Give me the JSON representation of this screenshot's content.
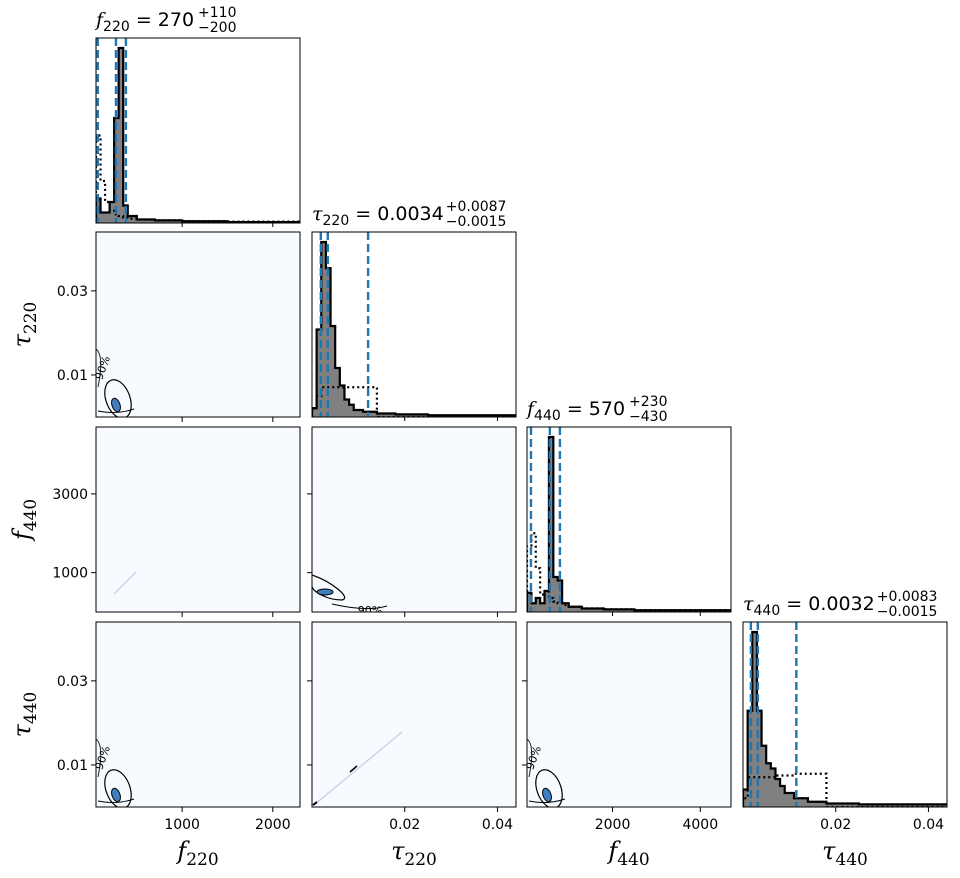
{
  "chart_data": {
    "type": "corner",
    "parameters": [
      {
        "key": "f220",
        "sym": "f",
        "sub": "220",
        "xlim": [
          50,
          2300
        ],
        "ticks": [
          1000,
          2000
        ],
        "tick_labels": [
          "1000",
          "2000"
        ],
        "title": {
          "eq": "= 270",
          "sup": "+110",
          "sub": "−200"
        },
        "quantiles": [
          70,
          270,
          380
        ],
        "hist_x": [
          50,
          100,
          150,
          200,
          250,
          300,
          350,
          400,
          500,
          700,
          1000,
          1500,
          2300
        ],
        "hist_y": [
          0.14,
          0.06,
          0.06,
          0.12,
          0.6,
          1.0,
          0.1,
          0.04,
          0.02,
          0.015,
          0.01,
          0.005
        ],
        "prior_y": [
          0.5,
          0.24,
          0.12,
          0.07,
          0.05,
          0.04,
          0.03,
          0.025,
          0.02,
          0.015,
          0.01,
          0.008
        ]
      },
      {
        "key": "t220",
        "sym": "τ",
        "sub": "220",
        "xlim": [
          0.0,
          0.044
        ],
        "ticks": [
          0.02,
          0.04
        ],
        "tick_labels": [
          "0.02",
          "0.04"
        ],
        "title": {
          "eq": "= 0.0034",
          "sup": "+0.0087",
          "sub": "−0.0015"
        },
        "quantiles": [
          0.0019,
          0.0034,
          0.0121
        ],
        "hist_x": [
          0.0,
          0.001,
          0.002,
          0.003,
          0.004,
          0.005,
          0.006,
          0.007,
          0.008,
          0.009,
          0.011,
          0.014,
          0.018,
          0.025,
          0.044
        ],
        "hist_y": [
          0.05,
          0.5,
          1.0,
          0.85,
          0.52,
          0.28,
          0.18,
          0.1,
          0.07,
          0.04,
          0.03,
          0.02,
          0.015,
          0.01
        ],
        "prior_y": [
          0.05,
          0.12,
          0.17,
          0.17,
          0.17,
          0.17,
          0.17,
          0.17,
          0.17,
          0.17,
          0.17,
          0.0,
          0.0,
          0.0
        ]
      },
      {
        "key": "f440",
        "sym": "f",
        "sub": "440",
        "xlim": [
          50,
          4700
        ],
        "ticks": [
          2000,
          4000
        ],
        "tick_labels": [
          "2000",
          "4000"
        ],
        "title": {
          "eq": "= 570",
          "sup": "+230",
          "sub": "−430"
        },
        "quantiles": [
          140,
          570,
          800
        ],
        "hist_x": [
          50,
          150,
          250,
          350,
          450,
          550,
          650,
          750,
          850,
          1000,
          1300,
          1800,
          2500,
          4700
        ],
        "hist_y": [
          0.11,
          0.05,
          0.08,
          0.05,
          0.12,
          1.0,
          0.2,
          0.18,
          0.05,
          0.03,
          0.02,
          0.015,
          0.01
        ],
        "prior_y": [
          0.38,
          0.45,
          0.25,
          0.1,
          0.12,
          0.08,
          0.06,
          0.05,
          0.04,
          0.03,
          0.02,
          0.015,
          0.01
        ]
      },
      {
        "key": "t440",
        "sym": "τ",
        "sub": "440",
        "xlim": [
          0.0,
          0.044
        ],
        "ticks": [
          0.02,
          0.04
        ],
        "tick_labels": [
          "0.02",
          "0.04"
        ],
        "title": {
          "eq": "= 0.0032",
          "sup": "+0.0083",
          "sub": "−0.0015"
        },
        "quantiles": [
          0.0017,
          0.0032,
          0.0115
        ],
        "hist_x": [
          0.0,
          0.001,
          0.002,
          0.003,
          0.004,
          0.005,
          0.006,
          0.007,
          0.008,
          0.009,
          0.011,
          0.014,
          0.018,
          0.025,
          0.044
        ],
        "hist_y": [
          0.1,
          0.55,
          1.0,
          0.55,
          0.35,
          0.25,
          0.22,
          0.16,
          0.12,
          0.08,
          0.05,
          0.03,
          0.02,
          0.015
        ],
        "prior_y": [
          0.05,
          0.17,
          0.17,
          0.17,
          0.17,
          0.17,
          0.17,
          0.18,
          0.18,
          0.18,
          0.19,
          0.19,
          0.0,
          0.0
        ]
      }
    ],
    "y_axes": {
      "t220": {
        "ylim": [
          0.0,
          0.044
        ],
        "ticks": [
          0.01,
          0.03
        ],
        "tick_labels": [
          "0.01",
          "0.03"
        ]
      },
      "f440": {
        "ylim": [
          0,
          4700
        ],
        "ticks": [
          1000,
          3000
        ],
        "tick_labels": [
          "1000",
          "3000"
        ]
      },
      "t440": {
        "ylim": [
          0.0,
          0.044
        ],
        "ticks": [
          0.01,
          0.03
        ],
        "tick_labels": [
          "0.01",
          "0.03"
        ]
      }
    },
    "contour_labels": [
      "90%",
      "90%",
      "90%",
      "90%"
    ],
    "colors": {
      "hist_fill": "#808080",
      "quantile_line": "#1f77b4",
      "panel_bg": "#f7fbff",
      "contour_fill": "#3f7fc0"
    }
  }
}
